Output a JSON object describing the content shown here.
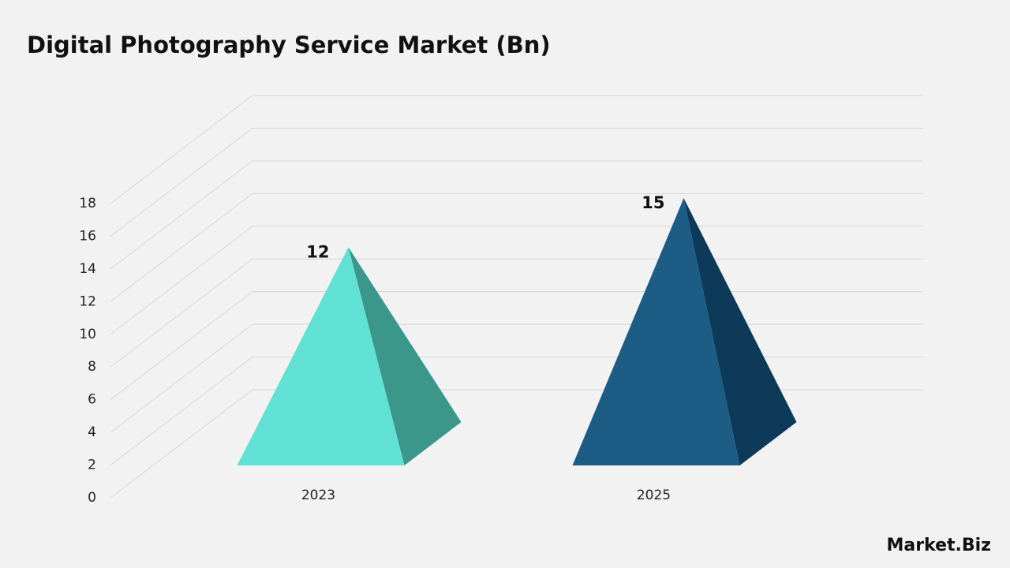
{
  "chart_data": {
    "type": "pyramid",
    "title": "Digital Photography Service Market (Bn)",
    "categories": [
      "2023",
      "2025"
    ],
    "values": [
      12,
      15
    ],
    "colors": [
      "#60e1d4",
      "#1d5c85"
    ],
    "shade_colors": [
      "#3a978a",
      "#0e3a5a"
    ],
    "ylim": [
      0,
      18
    ],
    "yticks": [
      0,
      2,
      4,
      6,
      8,
      10,
      12,
      14,
      16,
      18
    ],
    "grid": true
  },
  "brand": "Market.Biz"
}
